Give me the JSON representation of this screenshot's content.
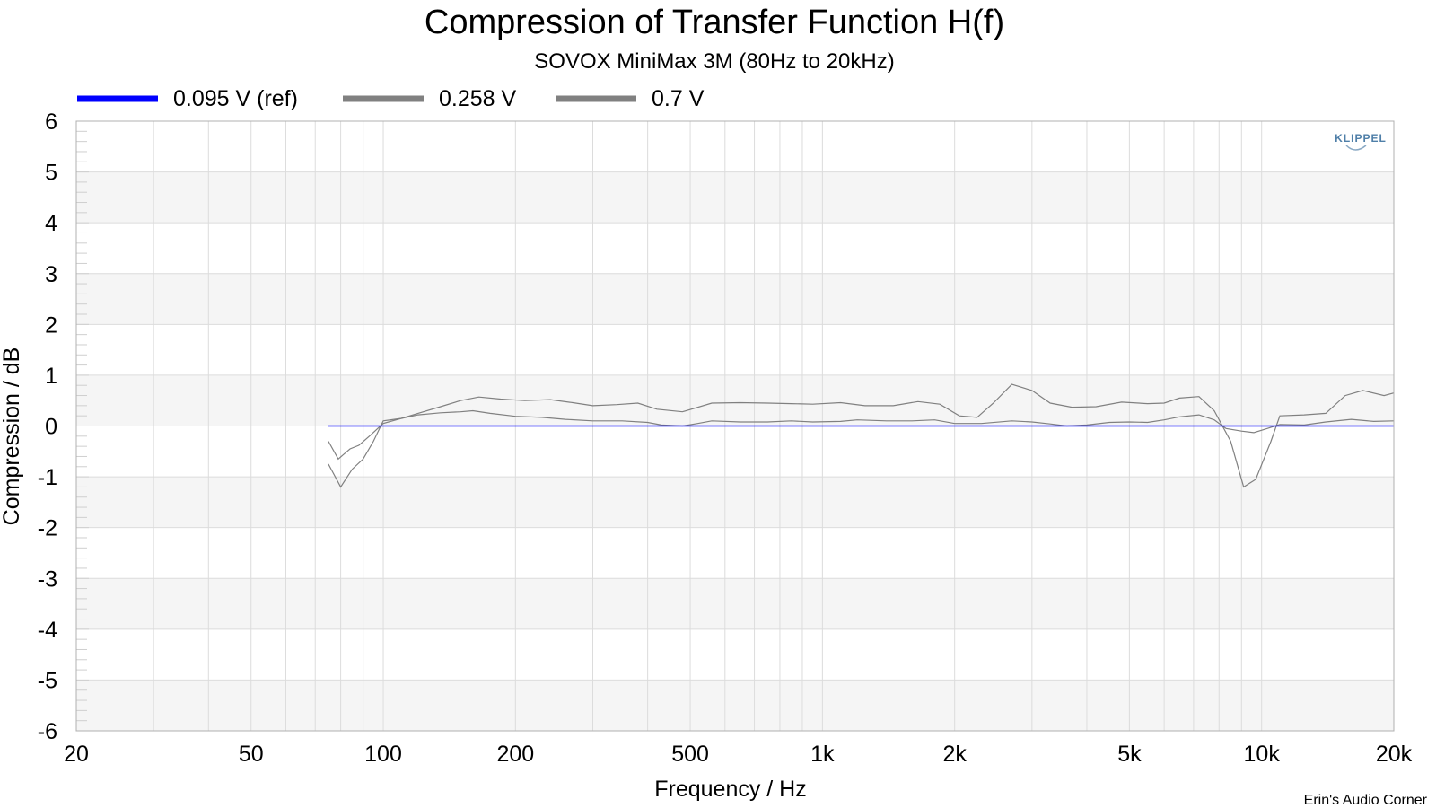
{
  "chart_data": {
    "type": "line",
    "title": "Compression of Transfer Function H(f)",
    "subtitle": "SOVOX MiniMax 3M (80Hz to 20kHz)",
    "xlabel": "Frequency / Hz",
    "ylabel": "Compression / dB",
    "x_scale": "log",
    "xlim": [
      20,
      20000
    ],
    "ylim": [
      -6,
      6
    ],
    "x_ticks": [
      {
        "value": 20,
        "label": "20"
      },
      {
        "value": 50,
        "label": "50"
      },
      {
        "value": 100,
        "label": "100"
      },
      {
        "value": 200,
        "label": "200"
      },
      {
        "value": 500,
        "label": "500"
      },
      {
        "value": 1000,
        "label": "1k"
      },
      {
        "value": 2000,
        "label": "2k"
      },
      {
        "value": 5000,
        "label": "5k"
      },
      {
        "value": 10000,
        "label": "10k"
      },
      {
        "value": 20000,
        "label": "20k"
      }
    ],
    "y_ticks": [
      6,
      5,
      4,
      3,
      2,
      1,
      0,
      -1,
      -2,
      -3,
      -4,
      -5,
      -6
    ],
    "grid": true,
    "legend_position": "top-left",
    "series": [
      {
        "name": "0.095 V (ref)",
        "color": "#0000ff",
        "points": [
          [
            75,
            0
          ],
          [
            20000,
            0
          ]
        ]
      },
      {
        "name": "0.258 V",
        "color": "#808080",
        "points": [
          [
            75,
            -0.3
          ],
          [
            79,
            -0.65
          ],
          [
            84,
            -0.45
          ],
          [
            88,
            -0.38
          ],
          [
            93,
            -0.2
          ],
          [
            100,
            0.05
          ],
          [
            110,
            0.15
          ],
          [
            120,
            0.22
          ],
          [
            135,
            0.26
          ],
          [
            150,
            0.28
          ],
          [
            160,
            0.3
          ],
          [
            175,
            0.25
          ],
          [
            200,
            0.19
          ],
          [
            230,
            0.17
          ],
          [
            260,
            0.13
          ],
          [
            300,
            0.1
          ],
          [
            350,
            0.1
          ],
          [
            400,
            0.07
          ],
          [
            430,
            0.02
          ],
          [
            480,
            0.0
          ],
          [
            520,
            0.05
          ],
          [
            560,
            0.1
          ],
          [
            650,
            0.08
          ],
          [
            750,
            0.08
          ],
          [
            850,
            0.1
          ],
          [
            950,
            0.08
          ],
          [
            1100,
            0.09
          ],
          [
            1200,
            0.12
          ],
          [
            1400,
            0.1
          ],
          [
            1600,
            0.1
          ],
          [
            1800,
            0.12
          ],
          [
            2000,
            0.05
          ],
          [
            2300,
            0.05
          ],
          [
            2700,
            0.1
          ],
          [
            3000,
            0.08
          ],
          [
            3300,
            0.04
          ],
          [
            3600,
            0.0
          ],
          [
            4000,
            0.02
          ],
          [
            4500,
            0.07
          ],
          [
            5000,
            0.08
          ],
          [
            5500,
            0.07
          ],
          [
            6000,
            0.12
          ],
          [
            6500,
            0.18
          ],
          [
            7200,
            0.22
          ],
          [
            7800,
            0.12
          ],
          [
            8300,
            -0.05
          ],
          [
            9000,
            -0.1
          ],
          [
            9600,
            -0.13
          ],
          [
            10300,
            -0.05
          ],
          [
            11000,
            0.03
          ],
          [
            12500,
            0.02
          ],
          [
            14000,
            0.08
          ],
          [
            16000,
            0.13
          ],
          [
            18000,
            0.09
          ],
          [
            20000,
            0.1
          ]
        ]
      },
      {
        "name": "0.7 V",
        "color": "#808080",
        "points": [
          [
            75,
            -0.75
          ],
          [
            80,
            -1.2
          ],
          [
            85,
            -0.85
          ],
          [
            90,
            -0.65
          ],
          [
            95,
            -0.3
          ],
          [
            100,
            0.1
          ],
          [
            110,
            0.15
          ],
          [
            120,
            0.25
          ],
          [
            135,
            0.38
          ],
          [
            150,
            0.5
          ],
          [
            165,
            0.57
          ],
          [
            185,
            0.53
          ],
          [
            210,
            0.5
          ],
          [
            240,
            0.52
          ],
          [
            270,
            0.46
          ],
          [
            300,
            0.4
          ],
          [
            340,
            0.42
          ],
          [
            380,
            0.45
          ],
          [
            420,
            0.33
          ],
          [
            480,
            0.28
          ],
          [
            560,
            0.45
          ],
          [
            650,
            0.46
          ],
          [
            750,
            0.45
          ],
          [
            850,
            0.44
          ],
          [
            950,
            0.43
          ],
          [
            1100,
            0.46
          ],
          [
            1250,
            0.4
          ],
          [
            1450,
            0.4
          ],
          [
            1650,
            0.48
          ],
          [
            1850,
            0.43
          ],
          [
            2050,
            0.2
          ],
          [
            2250,
            0.17
          ],
          [
            2450,
            0.45
          ],
          [
            2700,
            0.82
          ],
          [
            3000,
            0.7
          ],
          [
            3300,
            0.45
          ],
          [
            3700,
            0.37
          ],
          [
            4200,
            0.38
          ],
          [
            4800,
            0.47
          ],
          [
            5500,
            0.44
          ],
          [
            6000,
            0.45
          ],
          [
            6500,
            0.55
          ],
          [
            7200,
            0.58
          ],
          [
            7800,
            0.3
          ],
          [
            8500,
            -0.3
          ],
          [
            9100,
            -1.2
          ],
          [
            9700,
            -1.05
          ],
          [
            10500,
            -0.3
          ],
          [
            11000,
            0.2
          ],
          [
            12500,
            0.22
          ],
          [
            14000,
            0.25
          ],
          [
            15500,
            0.6
          ],
          [
            17000,
            0.7
          ],
          [
            19000,
            0.6
          ],
          [
            20000,
            0.65
          ]
        ]
      }
    ]
  },
  "credit": "Erin's Audio Corner",
  "logo": "KLIPPEL"
}
